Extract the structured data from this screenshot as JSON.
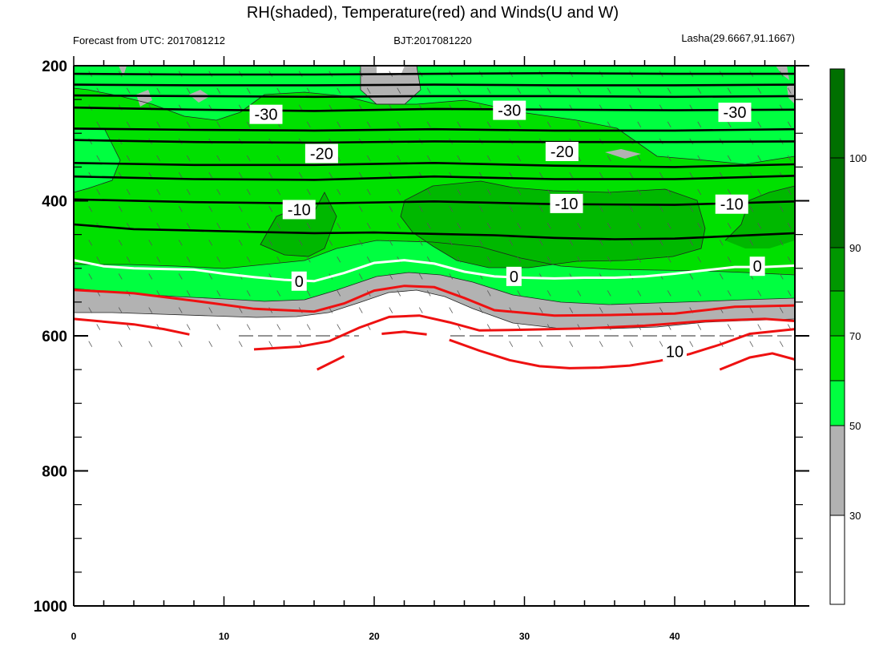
{
  "chart_data": {
    "type": "heatmap",
    "title": "RH(shaded), Temperature(red) and Winds(U and W)",
    "subtitle_left": "Forecast from UTC: 2017081212",
    "subtitle_center": "BJT:2017081220",
    "subtitle_right": "Lasha(29.6667,91.1667)",
    "xlim": [
      0,
      48
    ],
    "ylim": [
      1000,
      200
    ],
    "x_ticks": [
      0,
      10,
      20,
      30,
      40
    ],
    "y_ticks": [
      200,
      400,
      600,
      800,
      1000
    ],
    "colorbar": {
      "levels": [
        30,
        50,
        70,
        90,
        100
      ],
      "labels": [
        "30",
        "50",
        "70",
        "90",
        "100"
      ],
      "colors": [
        "#ffffff",
        "#b2b2b2",
        "#00ff40",
        "#00e000",
        "#00b800",
        "#009700",
        "#007000"
      ]
    },
    "contour_labels": [
      {
        "text": "-30",
        "x": 12.8,
        "y": 272
      },
      {
        "text": "-30",
        "x": 29.0,
        "y": 266
      },
      {
        "text": "-30",
        "x": 44.0,
        "y": 269
      },
      {
        "text": "-20",
        "x": 16.5,
        "y": 330
      },
      {
        "text": "-20",
        "x": 32.5,
        "y": 327
      },
      {
        "text": "-10",
        "x": 15.0,
        "y": 413
      },
      {
        "text": "-10",
        "x": 32.8,
        "y": 404
      },
      {
        "text": "-10",
        "x": 43.8,
        "y": 405
      },
      {
        "text": "0",
        "x": 15.0,
        "y": 519
      },
      {
        "text": "0",
        "x": 29.3,
        "y": 512
      },
      {
        "text": "0",
        "x": 45.5,
        "y": 497
      },
      {
        "text": "10",
        "x": 40.0,
        "y": 623
      }
    ],
    "white_zero_line": {
      "x": [
        0,
        2,
        4,
        6,
        8,
        10,
        12,
        14,
        16,
        18,
        20,
        22,
        24,
        26,
        28,
        30,
        32,
        34,
        36,
        38,
        40,
        42,
        44,
        46,
        48
      ],
      "y": [
        488,
        497,
        500,
        501,
        502,
        508,
        513,
        517,
        519,
        507,
        492,
        488,
        493,
        505,
        512,
        514,
        515,
        514,
        514,
        512,
        508,
        503,
        498,
        498,
        496
      ]
    },
    "black_temperature_lines": [
      {
        "x": [
          0,
          8,
          16,
          24,
          32,
          40,
          48
        ],
        "y": [
          212,
          213,
          213,
          212,
          211,
          212,
          212
        ]
      },
      {
        "x": [
          0,
          8,
          16,
          24,
          32,
          40,
          48
        ],
        "y": [
          228,
          229,
          229,
          228,
          229,
          229,
          228
        ]
      },
      {
        "x": [
          0,
          8,
          16,
          24,
          32,
          40,
          48
        ],
        "y": [
          244,
          245,
          246,
          245,
          245,
          246,
          245
        ]
      },
      {
        "x": [
          0,
          8,
          16,
          24,
          32,
          40,
          48
        ],
        "y": [
          262,
          265,
          267,
          264,
          265,
          266,
          265
        ]
      },
      {
        "x": [
          0,
          8,
          16,
          24,
          32,
          40,
          48
        ],
        "y": [
          293,
          295,
          296,
          294,
          296,
          296,
          294
        ]
      },
      {
        "x": [
          0,
          8,
          16,
          24,
          32,
          40,
          48
        ],
        "y": [
          310,
          313,
          314,
          312,
          313,
          313,
          312
        ]
      },
      {
        "x": [
          0,
          8,
          16,
          24,
          32,
          40,
          48
        ],
        "y": [
          344,
          347,
          347,
          344,
          348,
          350,
          346
        ]
      },
      {
        "x": [
          0,
          8,
          16,
          24,
          32,
          40,
          48
        ],
        "y": [
          364,
          368,
          369,
          364,
          368,
          368,
          363
        ]
      },
      {
        "x": [
          0,
          8,
          16,
          24,
          32,
          40,
          48
        ],
        "y": [
          398,
          402,
          404,
          401,
          405,
          406,
          401
        ]
      },
      {
        "x": [
          0,
          4,
          8,
          12,
          16,
          20,
          24,
          28,
          32,
          36,
          40,
          44,
          48
        ],
        "y": [
          435,
          442,
          444,
          446,
          448,
          447,
          449,
          451,
          455,
          457,
          456,
          452,
          448
        ]
      }
    ],
    "red_temperature_lines": [
      {
        "x": [
          0,
          4,
          8,
          12,
          16,
          18,
          20,
          22,
          24,
          26,
          28,
          32,
          36,
          40,
          44,
          48
        ],
        "y": [
          532,
          537,
          548,
          560,
          564,
          552,
          533,
          526,
          528,
          544,
          562,
          570,
          569,
          567,
          557,
          555
        ]
      },
      {
        "x": [
          0,
          4,
          6,
          7.7
        ],
        "y": [
          575,
          583,
          590,
          598
        ]
      },
      {
        "x": [
          12,
          15,
          17,
          19,
          21,
          23,
          25,
          27,
          30,
          34,
          38,
          42,
          46,
          48
        ],
        "y": [
          620,
          616,
          608,
          588,
          572,
          570,
          580,
          592,
          591,
          589,
          585,
          578,
          575,
          578
        ]
      },
      {
        "x": [
          20.5,
          22,
          23.5
        ],
        "y": [
          597,
          594,
          598
        ]
      },
      {
        "x": [
          16.2,
          18
        ],
        "y": [
          650,
          630
        ]
      },
      {
        "x": [
          25,
          27,
          29,
          31,
          33,
          35,
          37,
          39,
          41,
          43,
          45,
          48
        ],
        "y": [
          606,
          622,
          636,
          645,
          648,
          647,
          644,
          637,
          627,
          613,
          597,
          590
        ]
      },
      {
        "x": [
          43,
          45,
          46.5,
          48
        ],
        "y": [
          650,
          632,
          626,
          635
        ]
      }
    ]
  }
}
